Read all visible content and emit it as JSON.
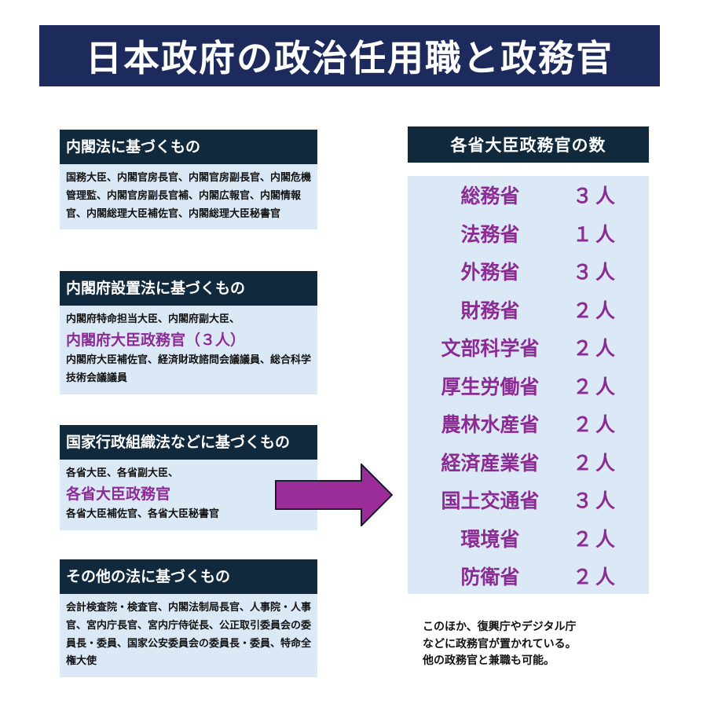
{
  "title": "日本政府の政治任用職と政務官",
  "groups": [
    {
      "header": "内閣法に基づくもの",
      "text": "国務大臣、内閣官房長官、内閣官房副長官、内閣危機管理監、内閣官房副長官補、内閣広報官、内閣情報官、内閣総理大臣補佐官、内閣総理大臣秘書官"
    },
    {
      "header": "内閣府設置法に基づくもの",
      "text_before": "内閣府特命担当大臣、内閣府副大臣、",
      "highlight": "内閣府大臣政務官（３人）",
      "text_after": "内閣府大臣補佐官、経済財政諮問会議議員、総合科学技術会議議員"
    },
    {
      "header": "国家行政組織法などに基づくもの",
      "text_before": "各省大臣、各省副大臣、",
      "highlight": "各省大臣政務官",
      "text_after": "各省大臣補佐官、各省大臣秘書官"
    },
    {
      "header": "その他の法に基づくもの",
      "text": "会計検査院・検査官、内閣法制局長官、人事院・人事官、宮内庁長官、宮内庁侍従長、公正取引委員会の委員長・委員、国家公安委員会の委員長・委員、特命全権大使"
    }
  ],
  "right": {
    "header": "各省大臣政務官の数",
    "rows": [
      {
        "ministry": "総務省",
        "count": "３人"
      },
      {
        "ministry": "法務省",
        "count": "１人"
      },
      {
        "ministry": "外務省",
        "count": "３人"
      },
      {
        "ministry": "財務省",
        "count": "２人"
      },
      {
        "ministry": "文部科学省",
        "count": "２人"
      },
      {
        "ministry": "厚生労働省",
        "count": "２人"
      },
      {
        "ministry": "農林水産省",
        "count": "２人"
      },
      {
        "ministry": "経済産業省",
        "count": "２人"
      },
      {
        "ministry": "国土交通省",
        "count": "３人"
      },
      {
        "ministry": "環境省",
        "count": "２人"
      },
      {
        "ministry": "防衛省",
        "count": "２人"
      }
    ]
  },
  "note": {
    "line1": "このほか、復興庁やデジタル庁",
    "line2": "などに政務官が置かれている。",
    "line3": "他の政務官と兼職も可能。"
  },
  "colors": {
    "title_bg": "#1c2a5c",
    "header_bg": "#10293c",
    "body_bg": "#dbe9f7",
    "highlight": "#8b2b93",
    "arrow_fill": "#9b2d98"
  }
}
